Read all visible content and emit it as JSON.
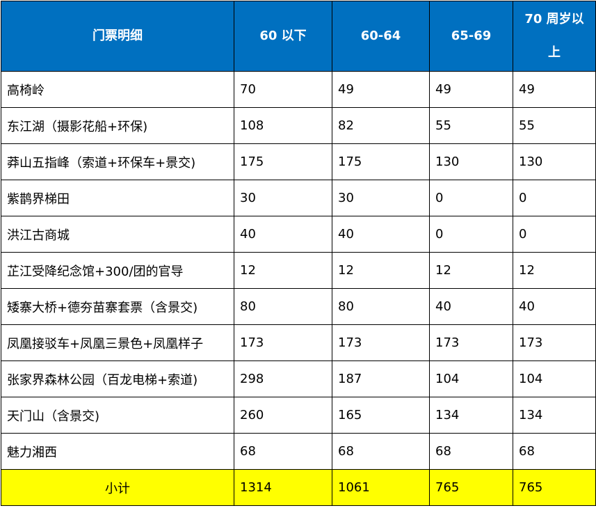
{
  "table": {
    "headers": [
      "门票明细",
      "60 以下",
      "60-64",
      "65-69",
      "70 周岁以上"
    ],
    "rows": [
      [
        "高椅岭",
        "70",
        "49",
        "49",
        "49"
      ],
      [
        "东江湖（摄影花船+环保)",
        "108",
        "82",
        "55",
        "55"
      ],
      [
        "莽山五指峰（索道+环保车+景交)",
        "175",
        "175",
        "130",
        "130"
      ],
      [
        "紫鹊界梯田",
        "30",
        "30",
        "0",
        "0"
      ],
      [
        "洪江古商城",
        "40",
        "40",
        "0",
        "0"
      ],
      [
        "芷江受降纪念馆+300/团的官导",
        "12",
        "12",
        "12",
        "12"
      ],
      [
        "矮寨大桥+德夯苗寨套票（含景交)",
        "80",
        "80",
        "40",
        "40"
      ],
      [
        "凤凰接驳车+凤凰三景色+凤凰样子",
        "173",
        "173",
        "173",
        "173"
      ],
      [
        "张家界森林公园（百龙电梯+索道)",
        "298",
        "187",
        "104",
        "104"
      ],
      [
        "天门山（含景交)",
        "260",
        "165",
        "134",
        "134"
      ],
      [
        "魅力湘西",
        "68",
        "68",
        "68",
        "68"
      ]
    ],
    "subtotal": [
      "小计",
      "1314",
      "1061",
      "765",
      "765"
    ]
  },
  "colors": {
    "header_bg": "#0070c0",
    "header_text": "#ffffff",
    "subtotal_bg": "#ffff00",
    "border": "#000000"
  }
}
